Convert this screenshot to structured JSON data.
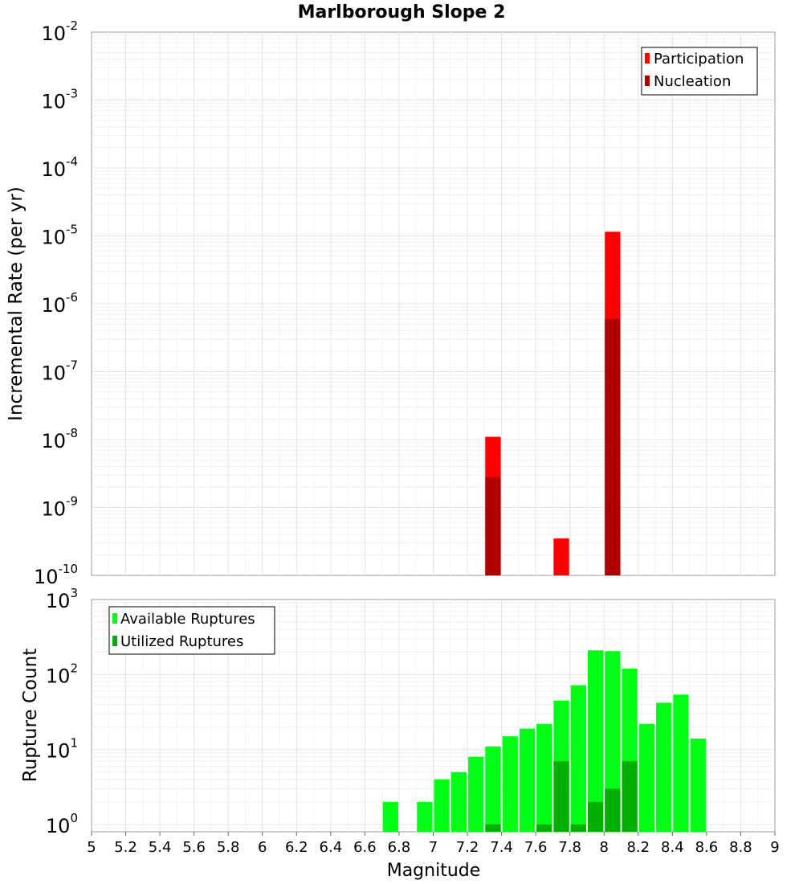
{
  "chart_data": [
    {
      "type": "bar",
      "title": "Marlborough Slope 2",
      "xlabel": "Magnitude",
      "ylabel": "Incremental Rate (per yr)",
      "yscale": "log",
      "ylim": [
        1e-10,
        0.01
      ],
      "xlim": [
        5,
        9
      ],
      "bin_width": 0.1,
      "y_tick_labels": [
        {
          "base": "10",
          "exp": "-2"
        },
        {
          "base": "10",
          "exp": "-3"
        },
        {
          "base": "10",
          "exp": "-4"
        },
        {
          "base": "10",
          "exp": "-5"
        },
        {
          "base": "10",
          "exp": "-6"
        },
        {
          "base": "10",
          "exp": "-7"
        },
        {
          "base": "10",
          "exp": "-8"
        },
        {
          "base": "10",
          "exp": "-9"
        },
        {
          "base": "10",
          "exp": "-10"
        }
      ],
      "legend": [
        "Participation",
        "Nucleation"
      ],
      "series": [
        {
          "name": "Participation",
          "color": "#ff0000",
          "points": [
            {
              "x": 7.35,
              "y": 1.1e-08
            },
            {
              "x": 7.75,
              "y": 3.5e-10
            },
            {
              "x": 8.05,
              "y": 1.15e-05
            }
          ]
        },
        {
          "name": "Nucleation",
          "color": "#b00000",
          "points": [
            {
              "x": 7.35,
              "y": 2.8e-09
            },
            {
              "x": 8.05,
              "y": 6e-07
            }
          ]
        }
      ]
    },
    {
      "type": "bar",
      "xlabel": "Magnitude",
      "ylabel": "Rupture Count",
      "yscale": "log",
      "ylim": [
        0.8,
        1000
      ],
      "xlim": [
        5,
        9
      ],
      "bin_width": 0.1,
      "x_tick_labels": [
        "5",
        "5.2",
        "5.4",
        "5.6",
        "5.8",
        "6",
        "6.2",
        "6.4",
        "6.6",
        "6.8",
        "7",
        "7.2",
        "7.4",
        "7.6",
        "7.8",
        "8",
        "8.2",
        "8.4",
        "8.6",
        "8.8",
        "9"
      ],
      "y_tick_labels": [
        {
          "base": "10",
          "exp": "3",
          "value": 1000
        },
        {
          "base": "10",
          "exp": "2",
          "value": 100
        },
        {
          "base": "10",
          "exp": "1",
          "value": 10
        },
        {
          "base": "10",
          "exp": "0",
          "value": 1
        }
      ],
      "legend": [
        "Available Ruptures",
        "Utilized Ruptures"
      ],
      "series": [
        {
          "name": "Available Ruptures",
          "color": "#00ff14",
          "points": [
            {
              "x": 6.75,
              "y": 2
            },
            {
              "x": 6.95,
              "y": 2
            },
            {
              "x": 7.05,
              "y": 4
            },
            {
              "x": 7.15,
              "y": 5
            },
            {
              "x": 7.25,
              "y": 8
            },
            {
              "x": 7.35,
              "y": 11
            },
            {
              "x": 7.45,
              "y": 15
            },
            {
              "x": 7.55,
              "y": 19
            },
            {
              "x": 7.65,
              "y": 22
            },
            {
              "x": 7.75,
              "y": 45
            },
            {
              "x": 7.85,
              "y": 72
            },
            {
              "x": 7.95,
              "y": 210
            },
            {
              "x": 8.05,
              "y": 205
            },
            {
              "x": 8.15,
              "y": 120
            },
            {
              "x": 8.25,
              "y": 22
            },
            {
              "x": 8.35,
              "y": 42
            },
            {
              "x": 8.45,
              "y": 54
            },
            {
              "x": 8.55,
              "y": 14
            }
          ]
        },
        {
          "name": "Utilized Ruptures",
          "color": "#00b000",
          "points": [
            {
              "x": 7.35,
              "y": 1
            },
            {
              "x": 7.65,
              "y": 1
            },
            {
              "x": 7.75,
              "y": 7
            },
            {
              "x": 7.85,
              "y": 1
            },
            {
              "x": 7.95,
              "y": 2
            },
            {
              "x": 8.05,
              "y": 3
            },
            {
              "x": 8.15,
              "y": 7
            }
          ]
        }
      ]
    }
  ]
}
